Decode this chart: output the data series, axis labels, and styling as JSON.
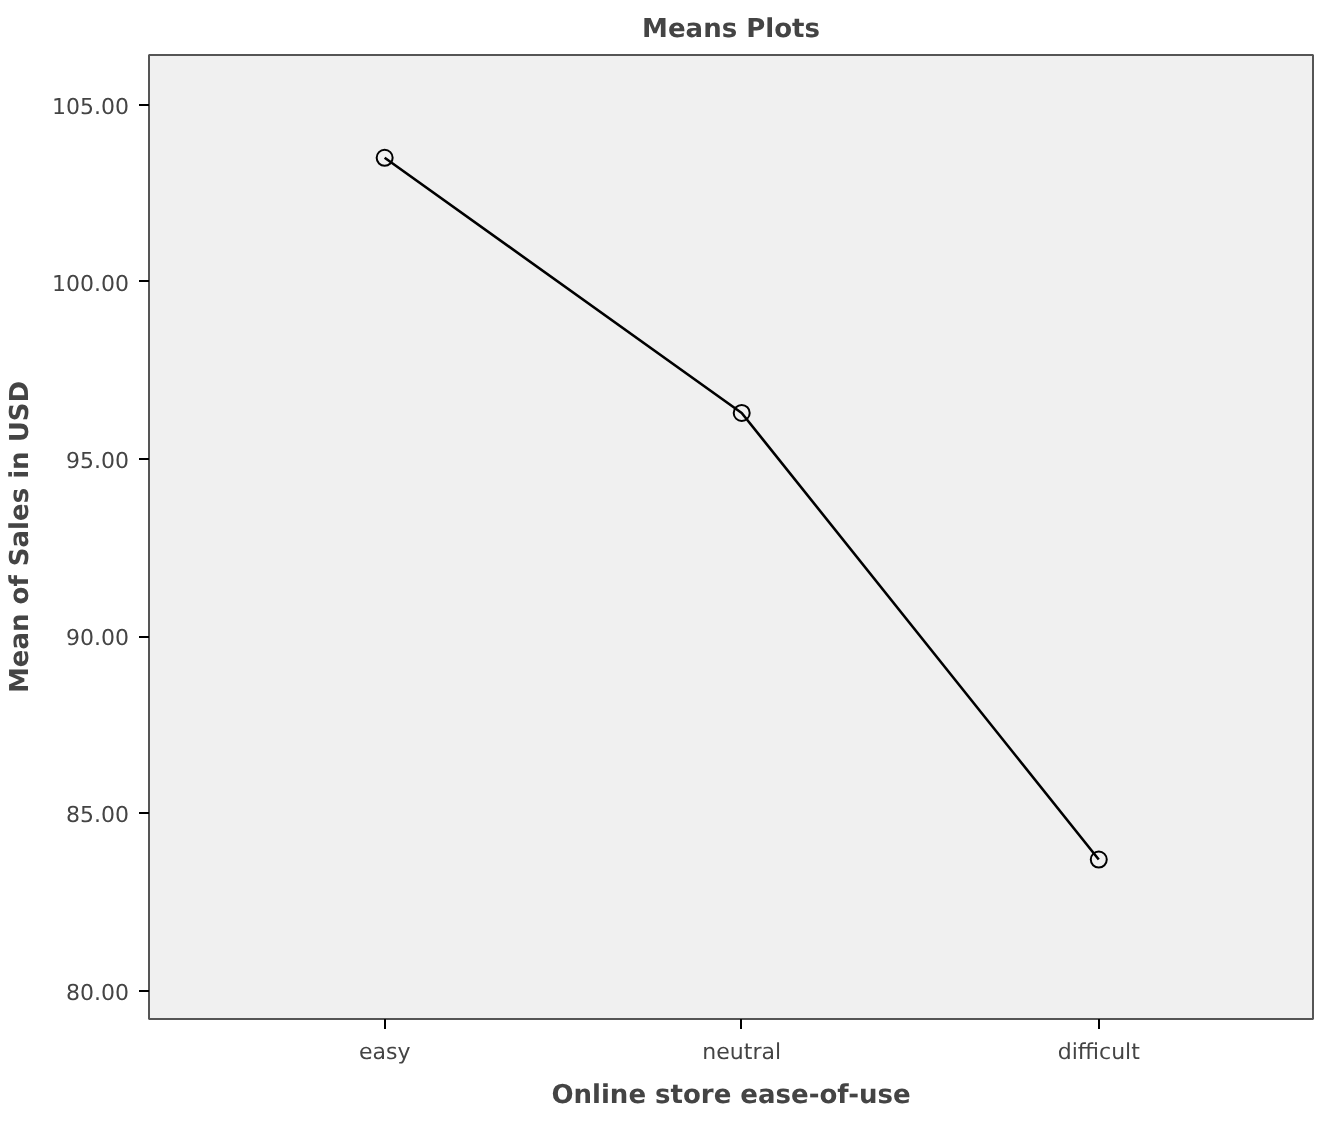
{
  "chart_data": {
    "type": "line",
    "title": "Means Plots",
    "xlabel": "Online store ease-of-use",
    "ylabel": "Mean of Sales in USD",
    "categories": [
      "easy",
      "neutral",
      "difficult"
    ],
    "series": [
      {
        "color": "#000000",
        "values": [
          103.5,
          96.3,
          83.7
        ]
      }
    ],
    "ylim": [
      79.2,
      106.4
    ],
    "yticks": [
      {
        "value": 80,
        "label": "80.00"
      },
      {
        "value": 85,
        "label": "85.00"
      },
      {
        "value": 90,
        "label": "90.00"
      },
      {
        "value": 95,
        "label": "95.00"
      },
      {
        "value": 100,
        "label": "100.00"
      },
      {
        "value": 105,
        "label": "105.00"
      }
    ],
    "grid": false,
    "marker": "circle",
    "line_style": "solid"
  }
}
